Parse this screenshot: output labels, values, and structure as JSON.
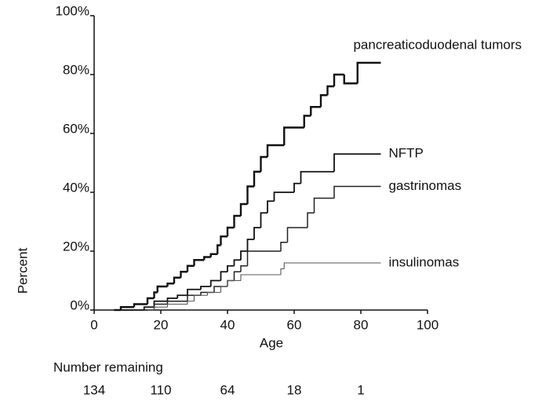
{
  "chart_data": {
    "type": "step",
    "xlabel": "Age",
    "ylabel": "Percent",
    "xlim": [
      0,
      100
    ],
    "xticks": [
      0,
      20,
      40,
      60,
      80,
      100
    ],
    "ylim": [
      0,
      100
    ],
    "yticks": [
      {
        "value": 0,
        "label": "0%"
      },
      {
        "value": 20,
        "label": "20%"
      },
      {
        "value": 40,
        "label": "40%"
      },
      {
        "value": 60,
        "label": "60%"
      },
      {
        "value": 80,
        "label": "80%"
      },
      {
        "value": 100,
        "label": "100%"
      }
    ],
    "series": [
      {
        "name": "pancreaticoduodenal tumors",
        "color": "#111111",
        "line_width": 2.4,
        "x": [
          6,
          8,
          12,
          16,
          18,
          19,
          22,
          24,
          26,
          28,
          30,
          33,
          35,
          37,
          38,
          40,
          42,
          44,
          46,
          48,
          50,
          52,
          57,
          63,
          65,
          68,
          70,
          72,
          75,
          79,
          86
        ],
        "values": [
          0,
          1,
          2,
          4,
          6,
          8,
          9,
          11,
          13,
          15,
          17,
          18,
          19,
          22,
          25,
          28,
          32,
          36,
          42,
          47,
          52,
          56,
          62,
          66,
          69,
          73,
          76,
          80,
          77,
          84,
          84
        ]
      },
      {
        "name": "NFTP",
        "color": "#111111",
        "line_width": 1.8,
        "x": [
          8,
          15,
          18,
          22,
          25,
          28,
          32,
          35,
          38,
          40,
          42,
          44,
          46,
          48,
          50,
          52,
          54,
          60,
          62,
          72,
          86
        ],
        "values": [
          0,
          1,
          3,
          4,
          5,
          7,
          8,
          10,
          13,
          15,
          17,
          20,
          24,
          28,
          33,
          37,
          40,
          43,
          47,
          53,
          53
        ]
      },
      {
        "name": "gastrinomas",
        "color": "#222222",
        "line_width": 1.5,
        "x": [
          12,
          18,
          22,
          28,
          32,
          36,
          40,
          42,
          44,
          46,
          56,
          58,
          64,
          66,
          72,
          86
        ],
        "values": [
          0,
          2,
          3,
          5,
          6,
          8,
          10,
          13,
          15,
          20,
          23,
          28,
          33,
          38,
          42,
          42
        ]
      },
      {
        "name": "insulinomas",
        "color": "#555555",
        "line_width": 1.1,
        "x": [
          16,
          18,
          22,
          28,
          30,
          34,
          38,
          40,
          44,
          56,
          57,
          86
        ],
        "values": [
          0,
          1,
          2,
          3,
          5,
          6,
          8,
          10,
          12,
          14,
          16,
          16
        ]
      }
    ],
    "risk_table": {
      "title": "Number remaining",
      "x": [
        0,
        20,
        40,
        60,
        80
      ],
      "values": [
        134,
        110,
        64,
        18,
        1
      ]
    }
  }
}
